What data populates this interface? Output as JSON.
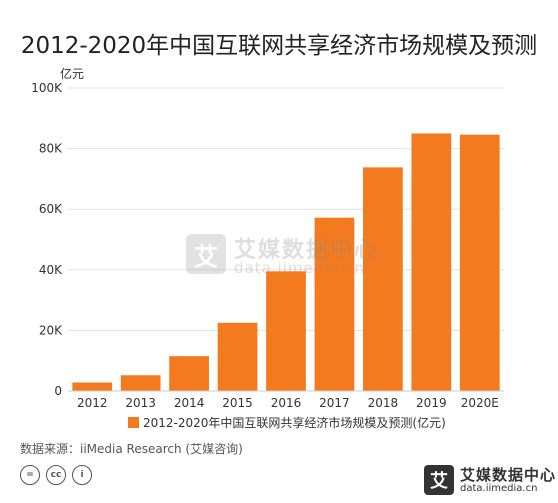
{
  "title": "2012-2020年中国互联网共享经济市场规模及预测",
  "source": "数据来源：iiMedia Research (艾媒咨询)",
  "watermark": {
    "mark": "艾",
    "name": "艾媒数据中心",
    "url": "data.iimedia.cn"
  },
  "brand": {
    "mark": "艾",
    "name": "艾媒数据中心",
    "url": "data.iimedia.cn"
  },
  "license_icons": [
    "=",
    "cc",
    "i"
  ],
  "chart_data": {
    "type": "bar",
    "title": "2012-2020年中国互联网共享经济市场规模及预测",
    "ylabel": "亿元",
    "xlabel": "",
    "categories": [
      "2012",
      "2013",
      "2014",
      "2015",
      "2016",
      "2017",
      "2018",
      "2019",
      "2020E"
    ],
    "series": [
      {
        "name": "2012-2020年中国互联网共享经济市场规模及预测(亿元)",
        "values": [
          2800,
          5200,
          11500,
          22500,
          39500,
          57200,
          73800,
          85000,
          84600
        ],
        "color": "#f47a20"
      }
    ],
    "ylim": [
      0,
      100000
    ],
    "yticks": [
      0,
      20000,
      40000,
      60000,
      80000,
      100000
    ],
    "ytick_labels": [
      "0",
      "20K",
      "40K",
      "60K",
      "80K",
      "100K"
    ],
    "grid": true,
    "legend": "bottom"
  }
}
